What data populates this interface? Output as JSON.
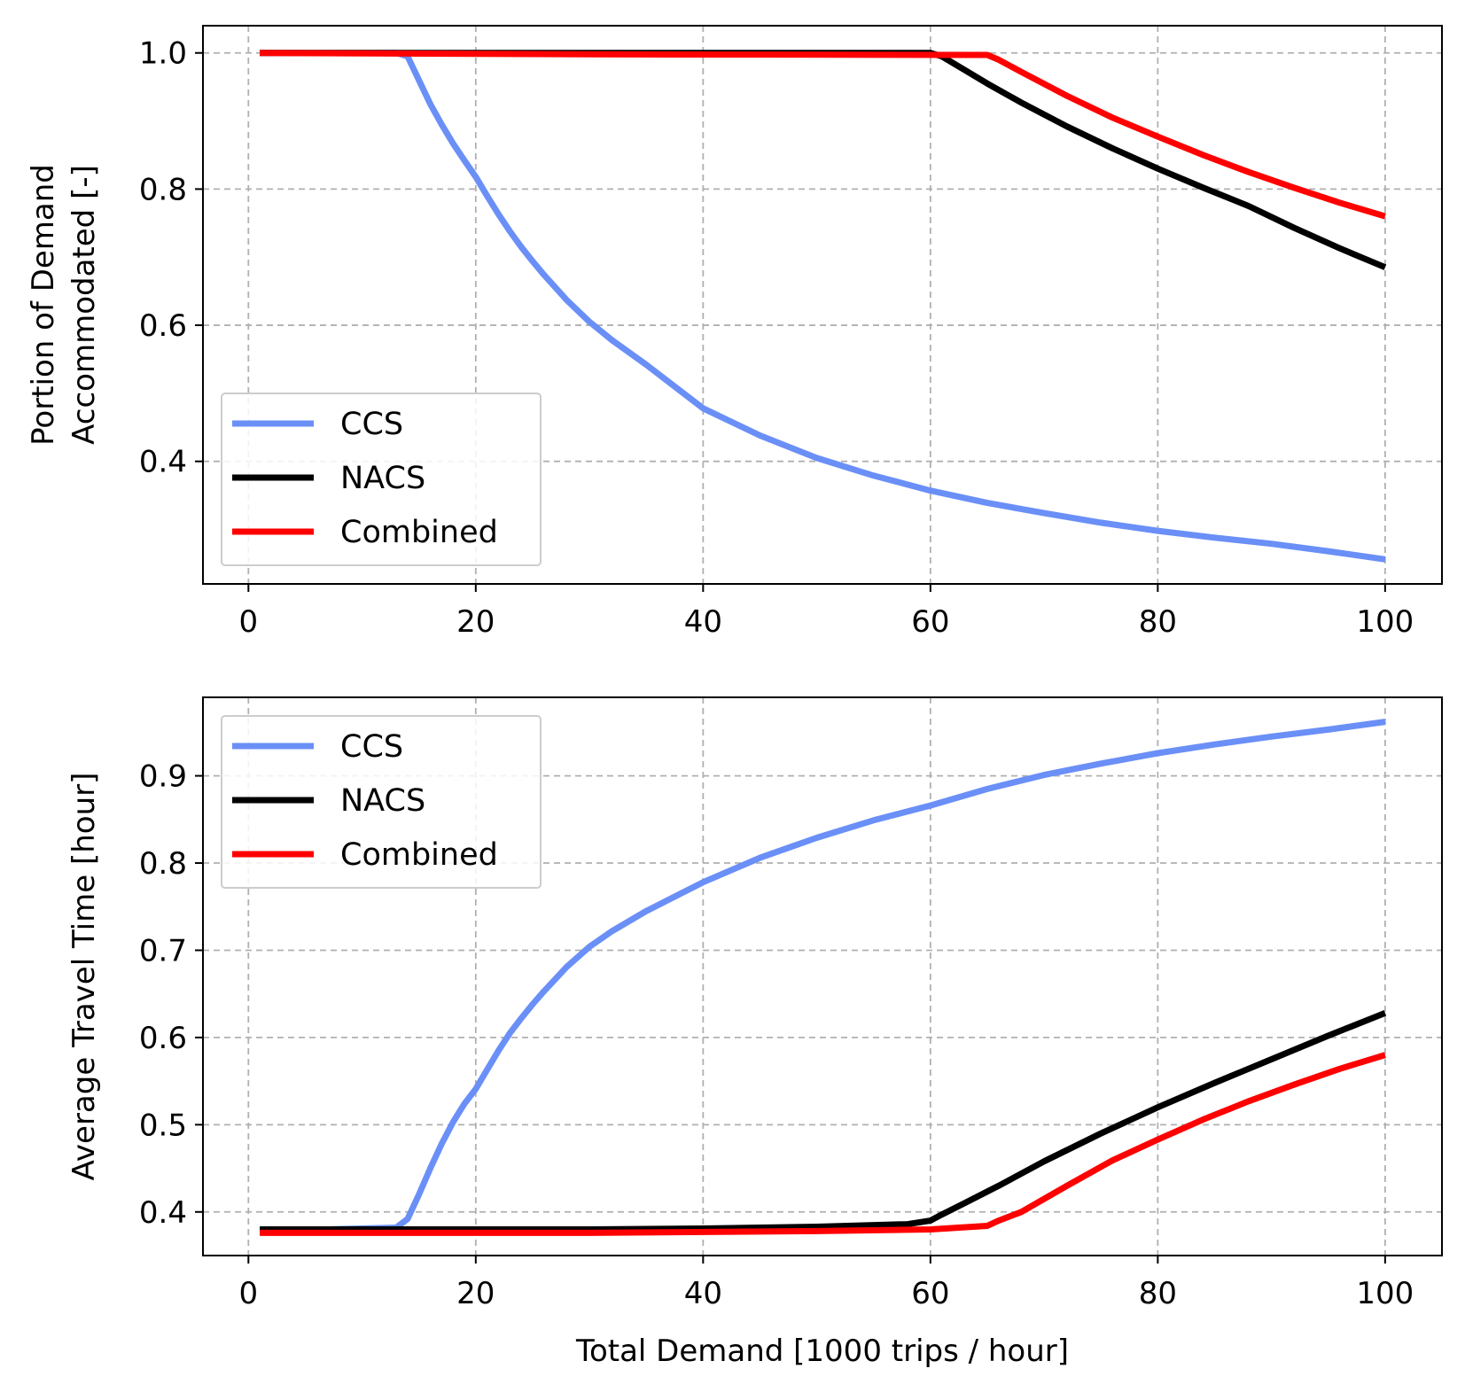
{
  "chart_data": [
    {
      "type": "line",
      "title": "",
      "xlabel": "",
      "ylabel_lines": [
        "Portion of Demand",
        "Accommodated [-]"
      ],
      "xlim": [
        -4,
        105
      ],
      "ylim": [
        0.22,
        1.04
      ],
      "xticks": [
        0,
        20,
        40,
        60,
        80,
        100
      ],
      "xtick_labels": [
        "0",
        "20",
        "40",
        "60",
        "80",
        "100"
      ],
      "yticks": [
        0.4,
        0.6,
        0.8,
        1.0
      ],
      "ytick_labels": [
        "0.4",
        "0.6",
        "0.8",
        "1.0"
      ],
      "grid": true,
      "legend_position": "lower-left",
      "series": [
        {
          "name": "CCS",
          "color": "#6a8ff7",
          "x": [
            1,
            13,
            14,
            15,
            16,
            17,
            18,
            19,
            20,
            21,
            22,
            23,
            24,
            25,
            26,
            28,
            30,
            32,
            35,
            40,
            45,
            50,
            55,
            60,
            65,
            70,
            75,
            80,
            85,
            90,
            95,
            100
          ],
          "y": [
            1.0,
            1.0,
            0.995,
            0.96,
            0.925,
            0.895,
            0.867,
            0.842,
            0.818,
            0.79,
            0.763,
            0.738,
            0.715,
            0.694,
            0.674,
            0.637,
            0.605,
            0.578,
            0.542,
            0.478,
            0.438,
            0.405,
            0.379,
            0.357,
            0.339,
            0.324,
            0.31,
            0.298,
            0.288,
            0.279,
            0.268,
            0.256
          ]
        },
        {
          "name": "NACS",
          "color": "#000000",
          "x": [
            1,
            30,
            60,
            61,
            63,
            65,
            68,
            72,
            76,
            80,
            84,
            88,
            92,
            96,
            100
          ],
          "y": [
            1.0,
            1.0,
            1.0,
            0.995,
            0.975,
            0.955,
            0.927,
            0.892,
            0.86,
            0.83,
            0.802,
            0.775,
            0.743,
            0.713,
            0.685
          ]
        },
        {
          "name": "Combined",
          "color": "#ff0000",
          "x": [
            1,
            30,
            64,
            65,
            66,
            68,
            72,
            76,
            80,
            84,
            88,
            92,
            96,
            100
          ],
          "y": [
            1.0,
            0.998,
            0.997,
            0.997,
            0.99,
            0.972,
            0.937,
            0.905,
            0.877,
            0.85,
            0.825,
            0.802,
            0.78,
            0.76
          ]
        }
      ]
    },
    {
      "type": "line",
      "title": "",
      "xlabel": "Total Demand [1000 trips / hour]",
      "ylabel": "Average Travel Time [hour]",
      "xlim": [
        -4,
        105
      ],
      "ylim": [
        0.35,
        0.99
      ],
      "xticks": [
        0,
        20,
        40,
        60,
        80,
        100
      ],
      "xtick_labels": [
        "0",
        "20",
        "40",
        "60",
        "80",
        "100"
      ],
      "yticks": [
        0.4,
        0.5,
        0.6,
        0.7,
        0.8,
        0.9
      ],
      "ytick_labels": [
        "0.4",
        "0.5",
        "0.6",
        "0.7",
        "0.8",
        "0.9"
      ],
      "grid": true,
      "legend_position": "upper-left",
      "series": [
        {
          "name": "CCS",
          "color": "#6a8ff7",
          "x": [
            1,
            13,
            14,
            15,
            16,
            17,
            18,
            19,
            20,
            21,
            22,
            23,
            24,
            25,
            26,
            28,
            30,
            32,
            35,
            40,
            45,
            50,
            55,
            60,
            65,
            70,
            75,
            80,
            85,
            90,
            95,
            100
          ],
          "y": [
            0.378,
            0.382,
            0.392,
            0.42,
            0.45,
            0.478,
            0.503,
            0.524,
            0.541,
            0.563,
            0.585,
            0.605,
            0.622,
            0.638,
            0.653,
            0.681,
            0.704,
            0.722,
            0.745,
            0.778,
            0.806,
            0.829,
            0.849,
            0.866,
            0.885,
            0.901,
            0.914,
            0.926,
            0.936,
            0.945,
            0.953,
            0.962
          ]
        },
        {
          "name": "NACS",
          "color": "#000000",
          "x": [
            1,
            14,
            30,
            40,
            50,
            58,
            60,
            61,
            63,
            66,
            70,
            75,
            80,
            85,
            90,
            95,
            100
          ],
          "y": [
            0.38,
            0.38,
            0.38,
            0.381,
            0.383,
            0.386,
            0.39,
            0.397,
            0.41,
            0.43,
            0.458,
            0.49,
            0.52,
            0.548,
            0.575,
            0.602,
            0.628
          ]
        },
        {
          "name": "Combined",
          "color": "#ff0000",
          "x": [
            1,
            30,
            50,
            60,
            65,
            66,
            68,
            72,
            76,
            80,
            84,
            88,
            92,
            96,
            100
          ],
          "y": [
            0.376,
            0.376,
            0.378,
            0.38,
            0.384,
            0.39,
            0.4,
            0.43,
            0.459,
            0.483,
            0.506,
            0.527,
            0.546,
            0.564,
            0.58
          ]
        }
      ]
    }
  ]
}
